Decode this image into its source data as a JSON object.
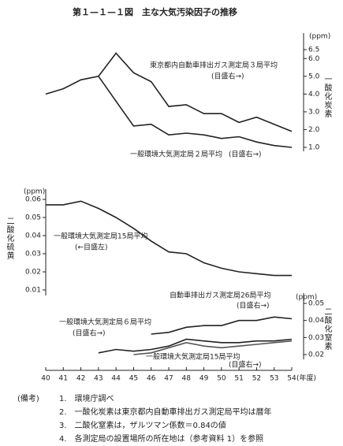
{
  "title": "第１—１—１図　主な大気汚染因子の推移",
  "chart_data": [
    {
      "type": "line",
      "y_unit": "(ppm)",
      "ylabel": "一酸化炭素",
      "yaxis_side": "right",
      "x": [
        40,
        41,
        42,
        43,
        44,
        45,
        46,
        47,
        48,
        49,
        50,
        51,
        52,
        53,
        54
      ],
      "xlim": [
        40,
        54
      ],
      "ylim": [
        1,
        6.5
      ],
      "yticks": [
        {
          "value": 1,
          "label": "1.0"
        },
        {
          "value": 2,
          "label": "2.0"
        },
        {
          "value": 3,
          "label": "3.0"
        },
        {
          "value": 4,
          "label": "4.0"
        },
        {
          "value": 5,
          "label": "5.0"
        },
        {
          "value": 6,
          "label": "6.0"
        },
        6.5
      ],
      "series": [
        {
          "name": "東京都内自動車排出ガス測定局３局平均",
          "note": "(目盛右→)",
          "color": "#222222",
          "values": [
            4.0,
            4.3,
            4.8,
            5.0,
            6.3,
            5.2,
            4.7,
            3.3,
            3.4,
            2.9,
            2.9,
            2.4,
            2.7,
            2.3,
            1.9
          ]
        },
        {
          "name": "一般環境大気測定局２局平均",
          "note": "(目盛右→)",
          "color": "#222222",
          "values": [
            null,
            null,
            null,
            5.0,
            3.6,
            2.2,
            2.3,
            1.7,
            1.8,
            1.7,
            1.5,
            1.6,
            1.3,
            1.1,
            1.0
          ]
        }
      ]
    },
    {
      "type": "line",
      "y_unit": "(ppm)",
      "ylabel": "二酸化硫黄",
      "yaxis_side": "left",
      "x": [
        40,
        41,
        42,
        43,
        44,
        45,
        46,
        47,
        48,
        49,
        50,
        51,
        52,
        53,
        54
      ],
      "xlim": [
        40,
        54
      ],
      "ylim": [
        0.01,
        0.06
      ],
      "yticks": [
        0.01,
        0.02,
        0.03,
        0.04,
        0.05,
        0.06
      ],
      "series": [
        {
          "name": "一般環境大気測定局15局平均",
          "note": "(←目盛左)",
          "color": "#222222",
          "values": [
            0.057,
            0.057,
            0.059,
            0.055,
            0.05,
            0.044,
            0.037,
            0.031,
            0.03,
            0.025,
            0.022,
            0.02,
            0.019,
            0.018,
            0.018
          ]
        }
      ]
    },
    {
      "type": "line",
      "y_unit": "(ppm)",
      "ylabel": "二酸化窒素",
      "yaxis_side": "right",
      "xlabel": "(年度)",
      "x": [
        40,
        41,
        42,
        43,
        44,
        45,
        46,
        47,
        48,
        49,
        50,
        51,
        52,
        53,
        54
      ],
      "xlim": [
        40,
        54
      ],
      "xticks": [
        40,
        41,
        42,
        43,
        44,
        45,
        46,
        47,
        48,
        49,
        50,
        51,
        52,
        53,
        54
      ],
      "ylim": [
        0.02,
        0.05
      ],
      "yticks": [
        0.02,
        0.03,
        0.04,
        0.05
      ],
      "series": [
        {
          "name": "自動車排出ガス測定局26局平均",
          "note": "(目盛右→)",
          "color": "#222222",
          "values": [
            null,
            null,
            null,
            null,
            null,
            null,
            0.032,
            0.033,
            0.036,
            0.037,
            0.037,
            0.04,
            0.04,
            0.042,
            0.041
          ]
        },
        {
          "name": "一般環境大気測定局６局平均",
          "note": "(目盛右→)",
          "color": "#222222",
          "values": [
            null,
            null,
            null,
            0.021,
            0.023,
            0.022,
            0.023,
            0.025,
            0.029,
            0.028,
            0.027,
            0.027,
            0.028,
            0.028,
            0.029
          ]
        },
        {
          "name": "一般環境大気測定局15局平均",
          "note": "(目盛右→)",
          "color": "#555555",
          "values": [
            null,
            null,
            null,
            null,
            null,
            0.02,
            0.021,
            0.024,
            0.027,
            0.025,
            0.024,
            0.025,
            0.026,
            0.027,
            0.028
          ]
        }
      ]
    }
  ],
  "notes": {
    "heading": "(備考)",
    "items": [
      "1.　環境庁調べ",
      "2.　一酸化炭素は東京都内自動車排出ガス測定局平均は暦年",
      "3.　二酸化窒素は，ザルツマン係数＝0.84の値",
      "4.　各測定局の設置場所の所在地は（参考資料 1）を参照"
    ]
  }
}
